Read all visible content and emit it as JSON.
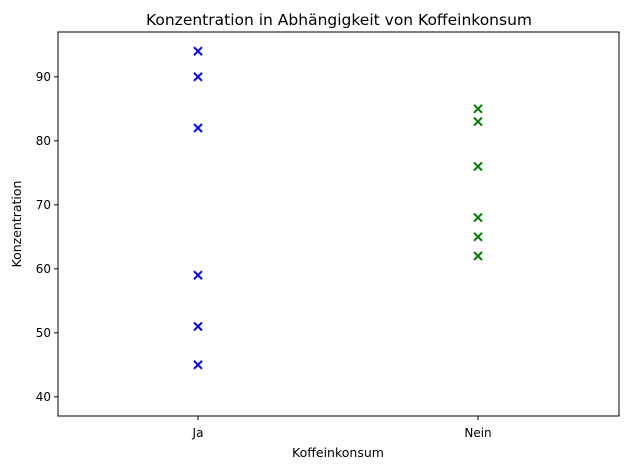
{
  "chart_data": {
    "type": "scatter",
    "title": "Konzentration in Abhängigkeit von Koffeinkonsum",
    "xlabel": "Koffeinkonsum",
    "ylabel": "Konzentration",
    "categories": [
      "Ja",
      "Nein"
    ],
    "yticks": [
      40,
      50,
      60,
      70,
      80,
      90
    ],
    "ylim": [
      37,
      97
    ],
    "grid": false,
    "marker": "x",
    "series": [
      {
        "category": "Ja",
        "color": "#0000ff",
        "values": [
          94,
          90,
          82,
          59,
          51,
          45
        ]
      },
      {
        "category": "Nein",
        "color": "#008000",
        "values": [
          85,
          83,
          76,
          68,
          65,
          62
        ]
      }
    ]
  }
}
